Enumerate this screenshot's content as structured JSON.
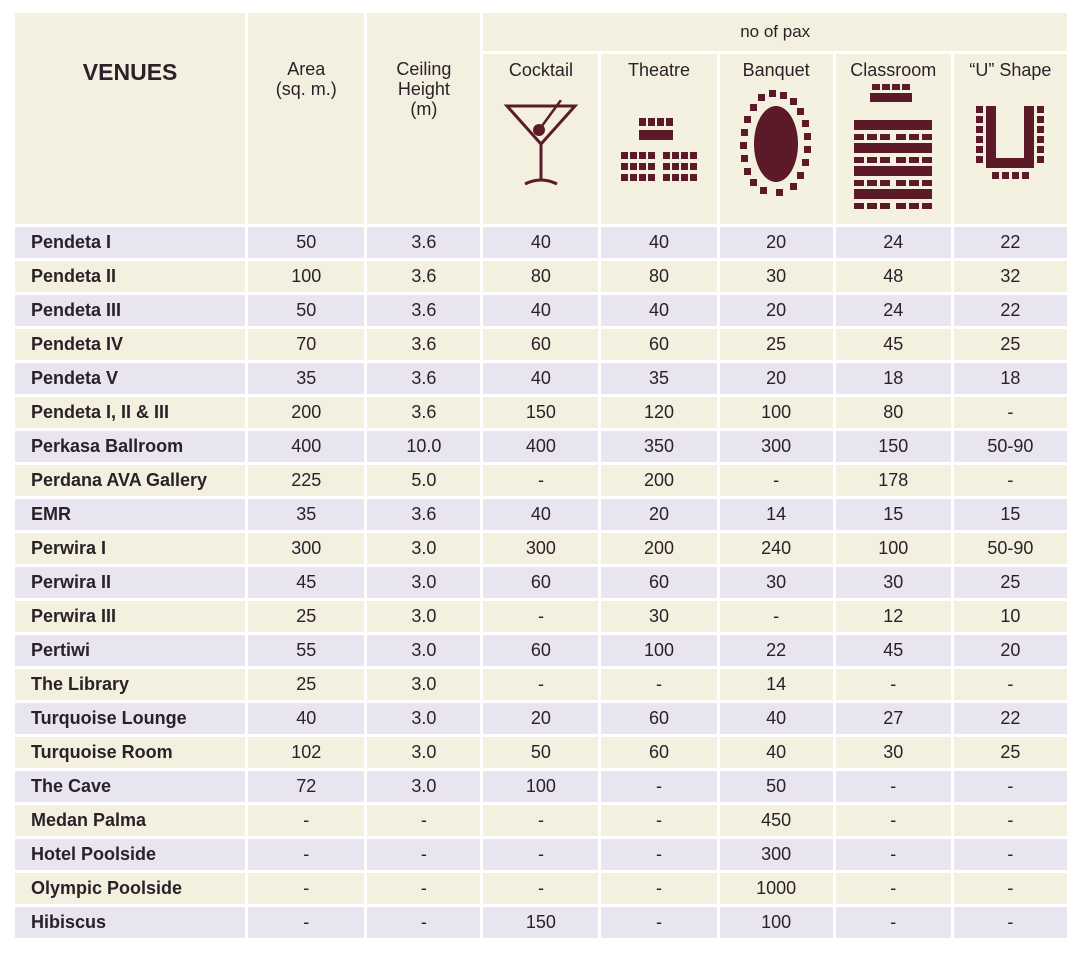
{
  "header": {
    "venues": "VENUES",
    "area": "Area",
    "area_unit": "(sq. m.)",
    "ceiling_1": "Ceiling",
    "ceiling_2": "Height",
    "ceiling_3": "(m)",
    "pax": "no of pax",
    "cocktail": "Cocktail",
    "theatre": "Theatre",
    "banquet": "Banquet",
    "classroom": "Classroom",
    "ushape": "“U” Shape"
  },
  "icons": {
    "cocktail": "martini-glass-icon",
    "theatre": "theatre-seating-icon",
    "banquet": "banquet-table-icon",
    "classroom": "classroom-seating-icon",
    "ushape": "u-shape-seating-icon"
  },
  "colors": {
    "icon": "#5c1a28",
    "row_odd": "#e8e4f0",
    "row_even": "#f4f0e0"
  },
  "rows": [
    {
      "venue": "Pendeta I",
      "area": "50",
      "ceiling": "3.6",
      "cocktail": "40",
      "theatre": "40",
      "banquet": "20",
      "classroom": "24",
      "ushape": "22"
    },
    {
      "venue": "Pendeta II",
      "area": "100",
      "ceiling": "3.6",
      "cocktail": "80",
      "theatre": "80",
      "banquet": "30",
      "classroom": "48",
      "ushape": "32"
    },
    {
      "venue": "Pendeta III",
      "area": "50",
      "ceiling": "3.6",
      "cocktail": "40",
      "theatre": "40",
      "banquet": "20",
      "classroom": "24",
      "ushape": "22"
    },
    {
      "venue": "Pendeta IV",
      "area": "70",
      "ceiling": "3.6",
      "cocktail": "60",
      "theatre": "60",
      "banquet": "25",
      "classroom": "45",
      "ushape": "25"
    },
    {
      "venue": "Pendeta V",
      "area": "35",
      "ceiling": "3.6",
      "cocktail": "40",
      "theatre": "35",
      "banquet": "20",
      "classroom": "18",
      "ushape": "18"
    },
    {
      "venue": "Pendeta I, II & III",
      "area": "200",
      "ceiling": "3.6",
      "cocktail": "150",
      "theatre": "120",
      "banquet": "100",
      "classroom": "80",
      "ushape": "-"
    },
    {
      "venue": "Perkasa Ballroom",
      "area": "400",
      "ceiling": "10.0",
      "cocktail": "400",
      "theatre": "350",
      "banquet": "300",
      "classroom": "150",
      "ushape": "50-90"
    },
    {
      "venue": "Perdana AVA Gallery",
      "area": "225",
      "ceiling": "5.0",
      "cocktail": "-",
      "theatre": "200",
      "banquet": "-",
      "classroom": "178",
      "ushape": "-"
    },
    {
      "venue": "EMR",
      "area": "35",
      "ceiling": "3.6",
      "cocktail": "40",
      "theatre": "20",
      "banquet": "14",
      "classroom": "15",
      "ushape": "15"
    },
    {
      "venue": "Perwira I",
      "area": "300",
      "ceiling": "3.0",
      "cocktail": "300",
      "theatre": "200",
      "banquet": "240",
      "classroom": "100",
      "ushape": "50-90"
    },
    {
      "venue": "Perwira II",
      "area": "45",
      "ceiling": "3.0",
      "cocktail": "60",
      "theatre": "60",
      "banquet": "30",
      "classroom": "30",
      "ushape": "25"
    },
    {
      "venue": "Perwira III",
      "area": "25",
      "ceiling": "3.0",
      "cocktail": "-",
      "theatre": "30",
      "banquet": "-",
      "classroom": "12",
      "ushape": "10"
    },
    {
      "venue": "Pertiwi",
      "area": "55",
      "ceiling": "3.0",
      "cocktail": "60",
      "theatre": "100",
      "banquet": "22",
      "classroom": "45",
      "ushape": "20"
    },
    {
      "venue": "The Library",
      "area": "25",
      "ceiling": "3.0",
      "cocktail": "-",
      "theatre": "-",
      "banquet": "14",
      "classroom": "-",
      "ushape": "-"
    },
    {
      "venue": "Turquoise Lounge",
      "area": "40",
      "ceiling": "3.0",
      "cocktail": "20",
      "theatre": "60",
      "banquet": "40",
      "classroom": "27",
      "ushape": "22"
    },
    {
      "venue": "Turquoise Room",
      "area": "102",
      "ceiling": "3.0",
      "cocktail": "50",
      "theatre": "60",
      "banquet": "40",
      "classroom": "30",
      "ushape": "25"
    },
    {
      "venue": "The Cave",
      "area": "72",
      "ceiling": "3.0",
      "cocktail": "100",
      "theatre": "-",
      "banquet": "50",
      "classroom": "-",
      "ushape": "-"
    },
    {
      "venue": "Medan Palma",
      "area": "-",
      "ceiling": "-",
      "cocktail": "-",
      "theatre": "-",
      "banquet": "450",
      "classroom": "-",
      "ushape": "-"
    },
    {
      "venue": "Hotel Poolside",
      "area": "-",
      "ceiling": "-",
      "cocktail": "-",
      "theatre": "-",
      "banquet": "300",
      "classroom": "-",
      "ushape": "-"
    },
    {
      "venue": "Olympic Poolside",
      "area": "-",
      "ceiling": "-",
      "cocktail": "-",
      "theatre": "-",
      "banquet": "1000",
      "classroom": "-",
      "ushape": "-"
    },
    {
      "venue": "Hibiscus",
      "area": "-",
      "ceiling": "-",
      "cocktail": "150",
      "theatre": "-",
      "banquet": "100",
      "classroom": "-",
      "ushape": "-"
    }
  ]
}
